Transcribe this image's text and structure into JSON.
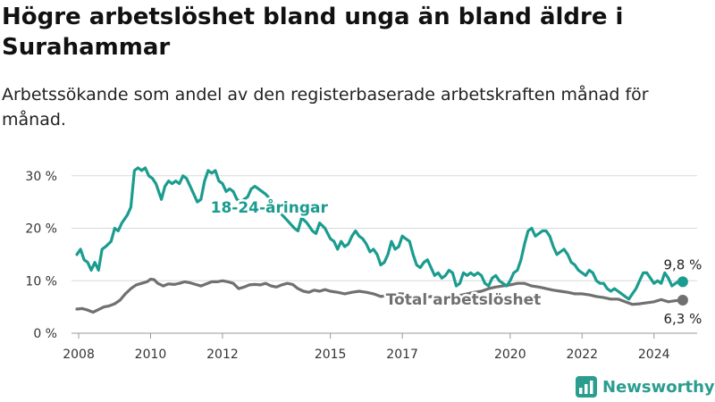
{
  "title": "Högre arbetslöshet bland unga än bland äldre i Surahammar",
  "subtitle": "Arbetssökande som andel av den registerbaserade arbetskraften månad för månad.",
  "brand": {
    "name": "Newsworthy"
  },
  "colors": {
    "youth": "#1a9c8f",
    "total": "#707070",
    "grid": "#d9d9d9",
    "brand": "#2a9d8f"
  },
  "chart_data": {
    "type": "line",
    "xlim": [
      2007.8,
      2025.2
    ],
    "ylim": [
      0,
      32
    ],
    "x_ticks": [
      2008,
      2010,
      2012,
      2015,
      2017,
      2020,
      2022,
      2024
    ],
    "x_tick_labels": [
      "2008",
      "2010",
      "2012",
      "2015",
      "2017",
      "2020",
      "2022",
      "2024"
    ],
    "y_ticks": [
      0,
      10,
      20,
      30
    ],
    "y_tick_labels": [
      "0 %",
      "10 %",
      "20 %",
      "30 %"
    ],
    "grid": true,
    "series": [
      {
        "name": "18-24-åringar",
        "key": "youth",
        "end_label": "9,8 %",
        "points": [
          [
            2007.95,
            15.0
          ],
          [
            2008.05,
            16.0
          ],
          [
            2008.15,
            14.0
          ],
          [
            2008.25,
            13.5
          ],
          [
            2008.35,
            12.0
          ],
          [
            2008.45,
            13.5
          ],
          [
            2008.55,
            12.0
          ],
          [
            2008.65,
            16.0
          ],
          [
            2008.75,
            16.5
          ],
          [
            2008.9,
            17.5
          ],
          [
            2009.0,
            20.0
          ],
          [
            2009.1,
            19.5
          ],
          [
            2009.2,
            21.0
          ],
          [
            2009.35,
            22.5
          ],
          [
            2009.45,
            24.0
          ],
          [
            2009.55,
            31.0
          ],
          [
            2009.65,
            31.5
          ],
          [
            2009.75,
            31.0
          ],
          [
            2009.85,
            31.5
          ],
          [
            2009.95,
            30.0
          ],
          [
            2010.05,
            29.5
          ],
          [
            2010.15,
            28.5
          ],
          [
            2010.3,
            25.5
          ],
          [
            2010.4,
            28.0
          ],
          [
            2010.5,
            29.0
          ],
          [
            2010.6,
            28.5
          ],
          [
            2010.7,
            29.0
          ],
          [
            2010.8,
            28.5
          ],
          [
            2010.9,
            30.0
          ],
          [
            2011.0,
            29.5
          ],
          [
            2011.1,
            28.0
          ],
          [
            2011.2,
            26.5
          ],
          [
            2011.3,
            25.0
          ],
          [
            2011.4,
            25.5
          ],
          [
            2011.5,
            29.0
          ],
          [
            2011.6,
            31.0
          ],
          [
            2011.7,
            30.5
          ],
          [
            2011.8,
            31.0
          ],
          [
            2011.9,
            29.0
          ],
          [
            2012.0,
            28.5
          ],
          [
            2012.1,
            27.0
          ],
          [
            2012.2,
            27.5
          ],
          [
            2012.3,
            27.0
          ],
          [
            2012.4,
            25.5
          ],
          [
            2012.5,
            25.0
          ],
          [
            2012.6,
            25.5
          ],
          [
            2012.7,
            26.0
          ],
          [
            2012.8,
            27.5
          ],
          [
            2012.9,
            28.0
          ],
          [
            2013.0,
            27.5
          ],
          [
            2013.2,
            26.5
          ],
          [
            2013.4,
            25.0
          ],
          [
            2013.6,
            23.0
          ],
          [
            2013.8,
            21.5
          ],
          [
            2014.0,
            20.0
          ],
          [
            2014.1,
            19.5
          ],
          [
            2014.2,
            22.0
          ],
          [
            2014.35,
            21.0
          ],
          [
            2014.5,
            19.5
          ],
          [
            2014.6,
            19.0
          ],
          [
            2014.7,
            21.0
          ],
          [
            2014.85,
            20.0
          ],
          [
            2015.0,
            18.0
          ],
          [
            2015.1,
            17.5
          ],
          [
            2015.2,
            16.0
          ],
          [
            2015.3,
            17.5
          ],
          [
            2015.4,
            16.5
          ],
          [
            2015.5,
            17.0
          ],
          [
            2015.6,
            18.5
          ],
          [
            2015.7,
            19.5
          ],
          [
            2015.8,
            18.5
          ],
          [
            2015.9,
            18.0
          ],
          [
            2016.0,
            17.0
          ],
          [
            2016.1,
            15.5
          ],
          [
            2016.2,
            16.0
          ],
          [
            2016.3,
            15.0
          ],
          [
            2016.4,
            13.0
          ],
          [
            2016.5,
            13.5
          ],
          [
            2016.6,
            15.0
          ],
          [
            2016.7,
            17.5
          ],
          [
            2016.8,
            16.0
          ],
          [
            2016.9,
            16.5
          ],
          [
            2017.0,
            18.5
          ],
          [
            2017.1,
            18.0
          ],
          [
            2017.2,
            17.5
          ],
          [
            2017.3,
            15.0
          ],
          [
            2017.4,
            13.0
          ],
          [
            2017.5,
            12.5
          ],
          [
            2017.6,
            13.5
          ],
          [
            2017.7,
            14.0
          ],
          [
            2017.8,
            12.5
          ],
          [
            2017.9,
            11.0
          ],
          [
            2018.0,
            11.5
          ],
          [
            2018.1,
            10.5
          ],
          [
            2018.2,
            11.0
          ],
          [
            2018.3,
            12.0
          ],
          [
            2018.4,
            11.5
          ],
          [
            2018.5,
            9.0
          ],
          [
            2018.6,
            9.5
          ],
          [
            2018.7,
            11.5
          ],
          [
            2018.8,
            11.0
          ],
          [
            2018.9,
            11.5
          ],
          [
            2019.0,
            11.0
          ],
          [
            2019.1,
            11.5
          ],
          [
            2019.2,
            11.0
          ],
          [
            2019.3,
            9.5
          ],
          [
            2019.4,
            9.0
          ],
          [
            2019.5,
            10.5
          ],
          [
            2019.6,
            11.0
          ],
          [
            2019.7,
            10.0
          ],
          [
            2019.8,
            9.5
          ],
          [
            2019.9,
            9.0
          ],
          [
            2020.0,
            10.0
          ],
          [
            2020.1,
            11.5
          ],
          [
            2020.2,
            12.0
          ],
          [
            2020.3,
            14.0
          ],
          [
            2020.4,
            17.0
          ],
          [
            2020.5,
            19.5
          ],
          [
            2020.6,
            20.0
          ],
          [
            2020.7,
            18.5
          ],
          [
            2020.8,
            19.0
          ],
          [
            2020.9,
            19.5
          ],
          [
            2021.0,
            19.5
          ],
          [
            2021.1,
            18.5
          ],
          [
            2021.2,
            16.5
          ],
          [
            2021.3,
            15.0
          ],
          [
            2021.4,
            15.5
          ],
          [
            2021.5,
            16.0
          ],
          [
            2021.6,
            15.0
          ],
          [
            2021.7,
            13.5
          ],
          [
            2021.8,
            13.0
          ],
          [
            2021.9,
            12.0
          ],
          [
            2022.0,
            11.5
          ],
          [
            2022.1,
            11.0
          ],
          [
            2022.2,
            12.0
          ],
          [
            2022.3,
            11.5
          ],
          [
            2022.4,
            10.0
          ],
          [
            2022.5,
            9.5
          ],
          [
            2022.6,
            9.5
          ],
          [
            2022.7,
            8.5
          ],
          [
            2022.8,
            8.0
          ],
          [
            2022.9,
            8.5
          ],
          [
            2023.0,
            8.0
          ],
          [
            2023.1,
            7.5
          ],
          [
            2023.2,
            7.0
          ],
          [
            2023.3,
            6.5
          ],
          [
            2023.4,
            7.5
          ],
          [
            2023.5,
            8.5
          ],
          [
            2023.6,
            10.0
          ],
          [
            2023.7,
            11.5
          ],
          [
            2023.8,
            11.5
          ],
          [
            2023.9,
            10.5
          ],
          [
            2024.0,
            9.5
          ],
          [
            2024.1,
            10.0
          ],
          [
            2024.2,
            9.5
          ],
          [
            2024.3,
            11.5
          ],
          [
            2024.4,
            10.5
          ],
          [
            2024.5,
            9.0
          ],
          [
            2024.6,
            9.5
          ],
          [
            2024.7,
            10.0
          ],
          [
            2024.8,
            9.8
          ]
        ]
      },
      {
        "name": "Total arbetslöshet",
        "key": "total",
        "end_label": "6,3 %",
        "points": [
          [
            2007.95,
            4.6
          ],
          [
            2008.1,
            4.7
          ],
          [
            2008.25,
            4.4
          ],
          [
            2008.4,
            4.0
          ],
          [
            2008.55,
            4.5
          ],
          [
            2008.7,
            5.0
          ],
          [
            2008.85,
            5.2
          ],
          [
            2009.0,
            5.6
          ],
          [
            2009.15,
            6.3
          ],
          [
            2009.3,
            7.5
          ],
          [
            2009.45,
            8.5
          ],
          [
            2009.6,
            9.2
          ],
          [
            2009.75,
            9.5
          ],
          [
            2009.9,
            9.8
          ],
          [
            2010.0,
            10.3
          ],
          [
            2010.1,
            10.2
          ],
          [
            2010.2,
            9.5
          ],
          [
            2010.35,
            9.0
          ],
          [
            2010.5,
            9.4
          ],
          [
            2010.65,
            9.3
          ],
          [
            2010.8,
            9.5
          ],
          [
            2010.95,
            9.8
          ],
          [
            2011.1,
            9.6
          ],
          [
            2011.25,
            9.3
          ],
          [
            2011.4,
            9.0
          ],
          [
            2011.55,
            9.4
          ],
          [
            2011.7,
            9.8
          ],
          [
            2011.85,
            9.8
          ],
          [
            2012.0,
            10.0
          ],
          [
            2012.15,
            9.8
          ],
          [
            2012.3,
            9.5
          ],
          [
            2012.45,
            8.5
          ],
          [
            2012.6,
            8.8
          ],
          [
            2012.75,
            9.2
          ],
          [
            2012.9,
            9.3
          ],
          [
            2013.05,
            9.2
          ],
          [
            2013.2,
            9.5
          ],
          [
            2013.35,
            9.0
          ],
          [
            2013.5,
            8.8
          ],
          [
            2013.65,
            9.2
          ],
          [
            2013.8,
            9.5
          ],
          [
            2013.95,
            9.3
          ],
          [
            2014.1,
            8.5
          ],
          [
            2014.25,
            8.0
          ],
          [
            2014.4,
            7.8
          ],
          [
            2014.55,
            8.2
          ],
          [
            2014.7,
            8.0
          ],
          [
            2014.85,
            8.3
          ],
          [
            2015.0,
            8.0
          ],
          [
            2015.2,
            7.8
          ],
          [
            2015.4,
            7.5
          ],
          [
            2015.6,
            7.8
          ],
          [
            2015.8,
            8.0
          ],
          [
            2016.0,
            7.8
          ],
          [
            2016.2,
            7.5
          ],
          [
            2016.4,
            7.0
          ],
          [
            2016.6,
            7.2
          ],
          [
            2016.8,
            7.5
          ],
          [
            2017.0,
            7.5
          ],
          [
            2017.2,
            7.2
          ],
          [
            2017.4,
            7.0
          ],
          [
            2017.6,
            6.8
          ],
          [
            2017.8,
            7.0
          ],
          [
            2018.0,
            7.0
          ],
          [
            2018.2,
            6.8
          ],
          [
            2018.4,
            7.0
          ],
          [
            2018.6,
            7.2
          ],
          [
            2018.8,
            7.5
          ],
          [
            2019.0,
            7.8
          ],
          [
            2019.2,
            8.0
          ],
          [
            2019.4,
            8.5
          ],
          [
            2019.6,
            8.8
          ],
          [
            2019.8,
            9.0
          ],
          [
            2020.0,
            9.2
          ],
          [
            2020.2,
            9.5
          ],
          [
            2020.4,
            9.5
          ],
          [
            2020.6,
            9.0
          ],
          [
            2020.8,
            8.8
          ],
          [
            2021.0,
            8.5
          ],
          [
            2021.2,
            8.2
          ],
          [
            2021.4,
            8.0
          ],
          [
            2021.6,
            7.8
          ],
          [
            2021.8,
            7.5
          ],
          [
            2022.0,
            7.5
          ],
          [
            2022.2,
            7.3
          ],
          [
            2022.4,
            7.0
          ],
          [
            2022.6,
            6.8
          ],
          [
            2022.8,
            6.5
          ],
          [
            2023.0,
            6.5
          ],
          [
            2023.2,
            6.0
          ],
          [
            2023.4,
            5.5
          ],
          [
            2023.6,
            5.6
          ],
          [
            2023.8,
            5.8
          ],
          [
            2024.0,
            6.0
          ],
          [
            2024.2,
            6.4
          ],
          [
            2024.4,
            6.0
          ],
          [
            2024.6,
            6.2
          ],
          [
            2024.8,
            6.3
          ]
        ]
      }
    ],
    "labels": [
      {
        "text": "18-24-åringar",
        "series": "youth",
        "x": 2013.3,
        "y": 24.0
      },
      {
        "text": "Total arbetslöshet",
        "series": "total",
        "x": 2018.7,
        "y": 6.5
      }
    ]
  }
}
